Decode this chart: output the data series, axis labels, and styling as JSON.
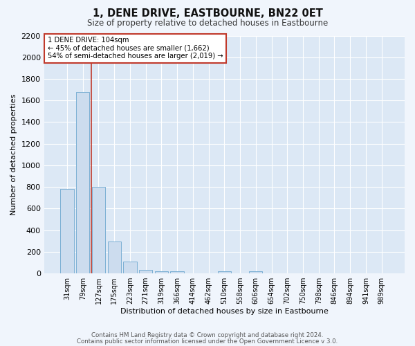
{
  "title": "1, DENE DRIVE, EASTBOURNE, BN22 0ET",
  "subtitle": "Size of property relative to detached houses in Eastbourne",
  "xlabel": "Distribution of detached houses by size in Eastbourne",
  "ylabel": "Number of detached properties",
  "categories": [
    "31sqm",
    "79sqm",
    "127sqm",
    "175sqm",
    "223sqm",
    "271sqm",
    "319sqm",
    "366sqm",
    "414sqm",
    "462sqm",
    "510sqm",
    "558sqm",
    "606sqm",
    "654sqm",
    "702sqm",
    "750sqm",
    "798sqm",
    "846sqm",
    "894sqm",
    "941sqm",
    "989sqm"
  ],
  "values": [
    780,
    1680,
    800,
    295,
    110,
    35,
    20,
    20,
    0,
    0,
    20,
    0,
    20,
    0,
    0,
    0,
    0,
    0,
    0,
    0,
    0
  ],
  "bar_color": "#ccdcee",
  "bar_edge_color": "#7bafd4",
  "marker_label": "1 DENE DRIVE: 104sqm",
  "annotation_line1": "← 45% of detached houses are smaller (1,662)",
  "annotation_line2": "54% of semi-detached houses are larger (2,019) →",
  "vline_color": "#c0392b",
  "box_edge_color": "#c0392b",
  "footnote1": "Contains HM Land Registry data © Crown copyright and database right 2024.",
  "footnote2": "Contains public sector information licensed under the Open Government Licence v 3.0.",
  "ylim": [
    0,
    2200
  ],
  "fig_bg_color": "#f0f5fc",
  "plot_bg_color": "#dce8f5",
  "grid_color": "#ffffff",
  "vline_x": 1.54
}
